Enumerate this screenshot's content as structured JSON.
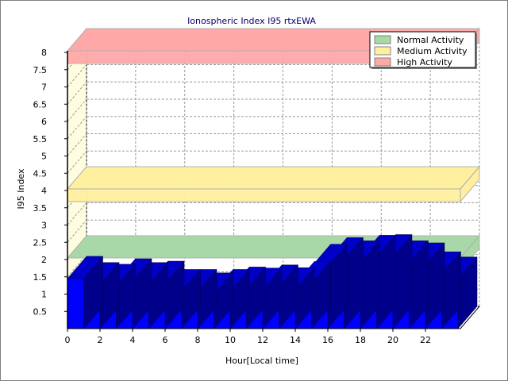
{
  "chart_data": {
    "type": "bar",
    "title": "Ionospheric Index I95 rtxEWA",
    "xlabel": "Hour[Local time]",
    "ylabel": "I95 Index",
    "ylim": [
      0,
      8
    ],
    "yticks": [
      "0.5",
      "1",
      "1.5",
      "2",
      "2.5",
      "3",
      "3.5",
      "4",
      "4.5",
      "5",
      "5.5",
      "6",
      "6.5",
      "7",
      "7.5",
      "8"
    ],
    "xticks": [
      "0",
      "2",
      "4",
      "6",
      "8",
      "10",
      "12",
      "14",
      "16",
      "18",
      "20",
      "22"
    ],
    "grid": true,
    "legend_position": "top-right",
    "bar_color": "#0000ff",
    "hours": [
      0,
      1,
      2,
      3,
      4,
      5,
      6,
      7,
      8,
      9,
      10,
      11,
      12,
      13,
      14,
      15,
      16,
      17,
      18,
      19,
      20,
      21,
      22,
      23
    ],
    "values": [
      1.45,
      1.27,
      1.22,
      1.38,
      1.27,
      1.31,
      1.07,
      1.07,
      0.97,
      1.07,
      1.14,
      1.11,
      1.2,
      1.12,
      1.3,
      1.8,
      1.99,
      1.9,
      2.06,
      2.08,
      1.9,
      1.84,
      1.58,
      1.43
    ],
    "bands": [
      {
        "name": "Normal Activity",
        "value": 2,
        "color": "#a8d8a8"
      },
      {
        "name": "Medium Activity",
        "value": 4,
        "color": "#fff0a0"
      },
      {
        "name": "High Activity",
        "value": 8,
        "color": "#ffa8a8"
      }
    ]
  }
}
